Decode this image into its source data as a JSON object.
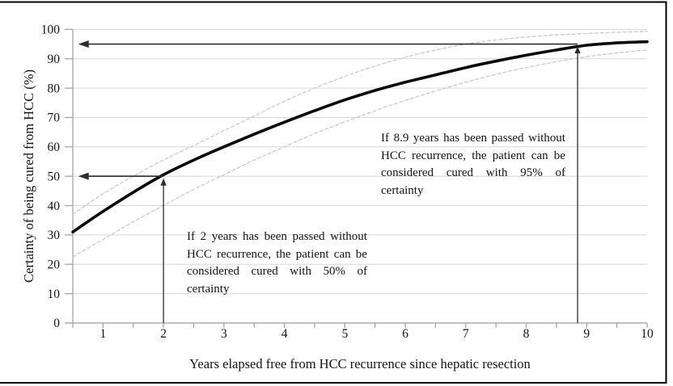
{
  "figure": {
    "border_color": "#000000",
    "background": "#ffffff"
  },
  "chart_data": {
    "type": "line",
    "title": "",
    "xlabel": "Years elapsed free from HCC recurrence since hepatic resection",
    "ylabel": "Certainty of being cured from HCC (%)",
    "xlim": [
      0.5,
      10
    ],
    "ylim": [
      0,
      100
    ],
    "x_tick_labels": [
      "1",
      "2",
      "3",
      "4",
      "5",
      "6",
      "7",
      "8",
      "9",
      "10"
    ],
    "x_minor_tick_step": 0.5,
    "y_tick_labels": [
      "0",
      "10",
      "20",
      "30",
      "40",
      "50",
      "60",
      "70",
      "80",
      "90",
      "100"
    ],
    "grid": "horizontal",
    "legend": "none",
    "x": [
      0.5,
      1,
      1.5,
      2,
      2.5,
      3,
      3.5,
      4,
      4.5,
      5,
      5.5,
      6,
      6.5,
      7,
      7.5,
      8,
      8.5,
      9,
      9.5,
      10
    ],
    "series": [
      {
        "name": "cure-certainty-curve",
        "style": "solid-bold",
        "color": "#0a0a0a",
        "values": [
          31,
          38,
          44.5,
          50.5,
          55.5,
          60,
          64.3,
          68.4,
          72.3,
          76,
          79.2,
          82,
          84.5,
          87,
          89.2,
          91.2,
          93,
          94.6,
          95.4,
          95.8
        ]
      },
      {
        "name": "upper-confidence-band",
        "style": "dashed",
        "color": "#c9c9c9",
        "values": [
          37,
          44,
          50,
          55.5,
          60.5,
          65.5,
          70.5,
          75.5,
          80,
          84,
          87.5,
          90.5,
          93,
          95,
          96.4,
          97.4,
          98.1,
          98.6,
          99,
          99.3
        ]
      },
      {
        "name": "lower-confidence-band",
        "style": "dashed",
        "color": "#c9c9c9",
        "values": [
          22.5,
          28.5,
          34.5,
          40,
          45.5,
          50.5,
          55.5,
          60,
          64.5,
          68.5,
          72.3,
          75.8,
          79,
          82,
          84.7,
          87,
          89,
          90.7,
          92,
          93
        ]
      }
    ],
    "reference_arrows": [
      {
        "type": "horizontal",
        "y": 95,
        "from_x": 8.85,
        "to_x": 0.59
      },
      {
        "type": "horizontal",
        "y": 50,
        "from_x": 2,
        "to_x": 0.59
      },
      {
        "type": "vertical",
        "x": 2,
        "from_y": 0,
        "to_y": 49.3
      },
      {
        "type": "vertical",
        "x": 8.85,
        "from_y": 0,
        "to_y": 94.3
      }
    ],
    "colors": {
      "gridline": "#d7d7d7",
      "axis": "#9e9e9e",
      "arrow": "#2d2d2d",
      "text": "#141414"
    }
  },
  "annotations": {
    "two_year": {
      "lines": [
        "If 2 years has been passed without",
        "HCC recurrence, the patient can be",
        "considered cured with 50% of",
        "certainty"
      ]
    },
    "nine_year": {
      "lines": [
        "If 8.9 years has been passed without",
        "HCC recurrence, the patient can be",
        "considered cured with 95% of",
        "certainty"
      ]
    }
  }
}
